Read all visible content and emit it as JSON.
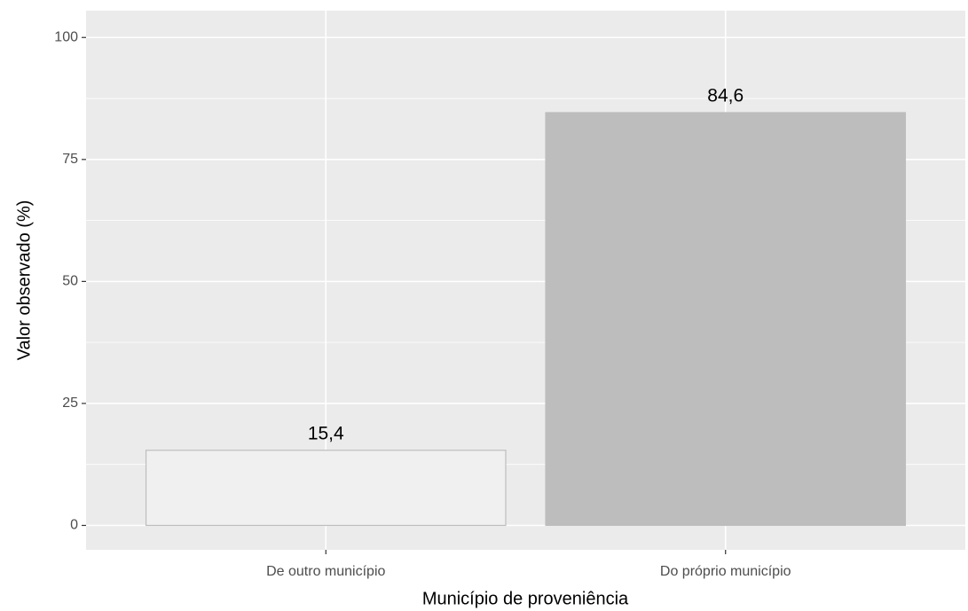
{
  "chart_data": {
    "type": "bar",
    "categories": [
      "De outro município",
      "Do próprio município"
    ],
    "values": [
      15.4,
      84.6
    ],
    "value_labels": [
      "15,4",
      "84,6"
    ],
    "colors": [
      "#f0f0f0",
      "#bdbdbd"
    ],
    "bar_outline": "#bdbdbd",
    "xlabel": "Município de proveniência",
    "ylabel": "Valor observado (%)",
    "ylim": [
      -5,
      105.5
    ],
    "yticks": [
      0,
      25,
      50,
      75,
      100
    ],
    "yminor": [
      12.5,
      37.5,
      62.5,
      87.5
    ],
    "grid": true,
    "panel_color": "#ebebeb"
  }
}
